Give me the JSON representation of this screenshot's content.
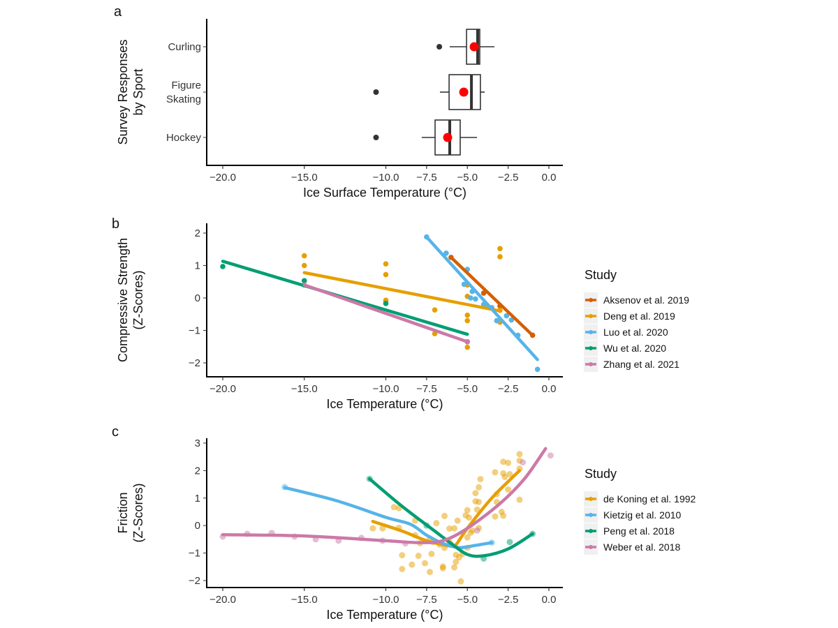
{
  "chart_data": [
    {
      "panel": "a",
      "type": "box",
      "xlabel": "Ice Surface Temperature (°C)",
      "ylabel": [
        "Survey Responses",
        "by Sport"
      ],
      "xlim": [
        -21.5,
        0.5
      ],
      "xticks": [
        "-20.0",
        "-15.0",
        "-10.0",
        "-7.5",
        "-5.0",
        "-2.5",
        "0.0"
      ],
      "xtick_values": [
        -20,
        -15,
        -10,
        -7.5,
        -5,
        -2.5,
        0
      ],
      "mean_color": "#FF0000",
      "categories": [
        {
          "label": [
            "Curling"
          ],
          "whisker_low": -6.08,
          "q1": -5.05,
          "median": -4.37,
          "q3": -4.24,
          "whisker_high": -3.34,
          "mean": -4.58,
          "outliers": [
            -6.72
          ]
        },
        {
          "label": [
            "Figure",
            "Skating"
          ],
          "whisker_low": -6.68,
          "q1": -6.12,
          "median": -4.75,
          "q3": -4.2,
          "whisker_high": -3.94,
          "mean": -5.22,
          "outliers": [
            -10.6
          ]
        },
        {
          "label": [
            "Hockey"
          ],
          "whisker_low": -7.8,
          "q1": -6.98,
          "median": -6.08,
          "q3": -5.44,
          "whisker_high": -4.41,
          "mean": -6.21,
          "outliers": [
            -10.6
          ]
        }
      ]
    },
    {
      "panel": "b",
      "type": "scatter",
      "xlabel": "Ice Temperature (°C)",
      "ylabel": [
        "Compressive Strength",
        "(Z-Scores)"
      ],
      "xlim": [
        -21.5,
        0.5
      ],
      "ylim": [
        -2.4,
        2.1
      ],
      "xticks": [
        "-20.0",
        "-15.0",
        "-10.0",
        "-7.5",
        "-5.0",
        "-2.5",
        "0.0"
      ],
      "xtick_values": [
        -20,
        -15,
        -10,
        -7.5,
        -5,
        -2.5,
        0
      ],
      "yticks": [
        "-2",
        "-1",
        "0",
        "1",
        "2"
      ],
      "ytick_values": [
        -2,
        -1,
        0,
        1,
        2
      ],
      "legend_title": "Study",
      "legend_position": "right",
      "series": [
        {
          "name": "Aksenov et al. 2019",
          "color": "#D55E00",
          "fit": [
            [
              -6,
              1.25
            ],
            [
              -1,
              -1.15
            ]
          ],
          "points": [
            [
              -6,
              1.25
            ],
            [
              -4,
              0.15
            ],
            [
              -3,
              -0.25
            ],
            [
              -1,
              -1.15
            ]
          ]
        },
        {
          "name": "Deng et al. 2019",
          "color": "#E69F00",
          "fit": [
            [
              -15,
              0.78
            ],
            [
              -3,
              -0.4
            ]
          ],
          "points": [
            [
              -15,
              1.3
            ],
            [
              -15,
              1.0
            ],
            [
              -10,
              1.05
            ],
            [
              -10,
              0.72
            ],
            [
              -10,
              -0.07
            ],
            [
              -10,
              -0.12
            ],
            [
              -7,
              -0.37
            ],
            [
              -7,
              -1.1
            ],
            [
              -5,
              0.4
            ],
            [
              -5,
              0.05
            ],
            [
              -5,
              -0.53
            ],
            [
              -5,
              -0.7
            ],
            [
              -5,
              -1.35
            ],
            [
              -5,
              -1.52
            ],
            [
              -3,
              1.52
            ],
            [
              -3,
              1.27
            ],
            [
              -3,
              -0.38
            ],
            [
              -3,
              -0.75
            ]
          ]
        },
        {
          "name": "Luo et al. 2020",
          "color": "#56B4E9",
          "fit": [
            [
              -7.5,
              1.88
            ],
            [
              -0.7,
              -1.9
            ]
          ],
          "points": [
            [
              -7.5,
              1.88
            ],
            [
              -6.3,
              1.38
            ],
            [
              -5,
              0.88
            ],
            [
              -5.2,
              0.42
            ],
            [
              -4.8,
              0.0
            ],
            [
              -4.5,
              -0.03
            ],
            [
              -4.7,
              0.2
            ],
            [
              -4,
              -0.2
            ],
            [
              -3.8,
              -0.25
            ],
            [
              -3.5,
              -0.3
            ],
            [
              -3.2,
              -0.7
            ],
            [
              -2.6,
              -0.55
            ],
            [
              -2.3,
              -0.68
            ],
            [
              -1.9,
              -1.15
            ],
            [
              -0.7,
              -2.2
            ]
          ]
        },
        {
          "name": "Wu et al. 2020",
          "color": "#009E73",
          "fit": [
            [
              -20,
              1.13
            ],
            [
              -5,
              -1.12
            ]
          ],
          "points": [
            [
              -20,
              0.97
            ],
            [
              -15,
              0.53
            ],
            [
              -10,
              -0.17
            ]
          ]
        },
        {
          "name": "Zhang et al. 2021",
          "color": "#CC79A7",
          "fit": [
            [
              -15,
              0.4
            ],
            [
              -5,
              -1.35
            ]
          ],
          "points": [
            [
              -15,
              0.4
            ],
            [
              -5,
              -1.35
            ]
          ]
        }
      ]
    },
    {
      "panel": "c",
      "type": "scatter",
      "xlabel": "Ice Temperature (°C)",
      "ylabel": [
        "Friction",
        "(Z-Scores)"
      ],
      "xlim": [
        -21.5,
        0.5
      ],
      "ylim": [
        -2.3,
        3.1
      ],
      "xticks": [
        "-20.0",
        "-15.0",
        "-10.0",
        "-7.5",
        "-5.0",
        "-2.5",
        "0.0"
      ],
      "xtick_values": [
        -20,
        -15,
        -10,
        -7.5,
        -5,
        -2.5,
        0
      ],
      "yticks": [
        "-2",
        "-1",
        "0",
        "1",
        "2",
        "3"
      ],
      "ytick_values": [
        -2,
        -1,
        0,
        1,
        2,
        3
      ],
      "legend_title": "Study",
      "legend_position": "right",
      "series": [
        {
          "name": "de Koning et al. 1992",
          "color": "#E69F00",
          "fit": [
            [
              -10.8,
              0.15
            ],
            [
              -9,
              -0.2
            ],
            [
              -7.5,
              -0.55
            ],
            [
              -6,
              -0.75
            ],
            [
              -5.7,
              -0.7
            ],
            [
              -5,
              -0.1
            ],
            [
              -3.5,
              1.0
            ],
            [
              -1.8,
              2.0
            ]
          ],
          "points": [
            [
              -9.5,
              0.67
            ],
            [
              -9.2,
              0.63
            ],
            [
              -10.8,
              -0.1
            ],
            [
              -10.2,
              -0.1
            ],
            [
              -9.2,
              -0.08
            ],
            [
              -8.2,
              0.18
            ],
            [
              -8.2,
              -0.35
            ],
            [
              -7.9,
              -0.64
            ],
            [
              -9.0,
              -1.08
            ],
            [
              -9.0,
              -1.58
            ],
            [
              -8.4,
              -1.42
            ],
            [
              -8.0,
              -1.1
            ],
            [
              -7.6,
              -1.37
            ],
            [
              -7.3,
              -1.69
            ],
            [
              -7.2,
              -1.03
            ],
            [
              -6.9,
              0.09
            ],
            [
              -6.5,
              -1.49
            ],
            [
              -6.5,
              -1.55
            ],
            [
              -6.4,
              0.35
            ],
            [
              -6.1,
              -0.11
            ],
            [
              -5.8,
              -0.1
            ],
            [
              -5.8,
              -1.52
            ],
            [
              -5.7,
              -1.32
            ],
            [
              -5.6,
              0.18
            ],
            [
              -5.7,
              -1.07
            ],
            [
              -5.5,
              -1.15
            ],
            [
              -5.4,
              -2.03
            ],
            [
              -5.1,
              0.37
            ],
            [
              -5.0,
              0.56
            ],
            [
              -4.9,
              0.29
            ],
            [
              -5.0,
              -0.43
            ],
            [
              -4.7,
              -0.18
            ],
            [
              -4.5,
              0.88
            ],
            [
              -4.5,
              1.18
            ],
            [
              -4.3,
              1.39
            ],
            [
              -4.3,
              0.86
            ],
            [
              -4.2,
              1.69
            ],
            [
              -4.4,
              0.58
            ],
            [
              -4.3,
              -0.09
            ],
            [
              -3.3,
              1.94
            ],
            [
              -3.2,
              1.14
            ],
            [
              -3.3,
              0.33
            ],
            [
              -3.2,
              0.86
            ],
            [
              -2.8,
              2.32
            ],
            [
              -2.5,
              2.28
            ],
            [
              -2.8,
              1.9
            ],
            [
              -2.7,
              1.77
            ],
            [
              -2.4,
              1.87
            ],
            [
              -2.5,
              1.31
            ],
            [
              -2.9,
              0.5
            ],
            [
              -2.8,
              0.36
            ],
            [
              -1.8,
              2.6
            ],
            [
              -1.8,
              2.36
            ],
            [
              -1.8,
              2.07
            ],
            [
              -1.8,
              0.94
            ],
            [
              -7.3,
              -0.47
            ],
            [
              -7.1,
              -0.6
            ],
            [
              -6.7,
              -0.69
            ],
            [
              -6.4,
              -0.81
            ],
            [
              -6.1,
              -0.6
            ],
            [
              -6.0,
              -0.69
            ],
            [
              -5.3,
              -1.03
            ],
            [
              -5.0,
              -0.81
            ],
            [
              -4.8,
              -0.26
            ]
          ]
        },
        {
          "name": "Kietzig et al. 2010",
          "color": "#56B4E9",
          "fit": [
            [
              -16.2,
              1.38
            ],
            [
              -13,
              0.9
            ],
            [
              -10,
              0.3
            ],
            [
              -8.5,
              0.05
            ],
            [
              -7.5,
              -0.35
            ],
            [
              -6.5,
              -0.65
            ],
            [
              -5.5,
              -0.8
            ],
            [
              -4.5,
              -0.72
            ],
            [
              -3.5,
              -0.62
            ]
          ],
          "points": [
            [
              -16.2,
              1.4
            ],
            [
              -3.5,
              -0.62
            ]
          ]
        },
        {
          "name": "Peng et al. 2018",
          "color": "#009E73",
          "fit": [
            [
              -11,
              1.7
            ],
            [
              -9,
              0.7
            ],
            [
              -7,
              -0.2
            ],
            [
              -6,
              -0.65
            ],
            [
              -5,
              -1.05
            ],
            [
              -4,
              -1.1
            ],
            [
              -2.5,
              -0.85
            ],
            [
              -1,
              -0.3
            ]
          ],
          "points": [
            [
              -11,
              1.7
            ],
            [
              -7.5,
              0.0
            ],
            [
              -4,
              -1.2
            ],
            [
              -2.4,
              -0.6
            ],
            [
              -1,
              -0.3
            ]
          ]
        },
        {
          "name": "Weber et al. 2018",
          "color": "#CC79A7",
          "fit": [
            [
              -20,
              -0.33
            ],
            [
              -15,
              -0.38
            ],
            [
              -10,
              -0.55
            ],
            [
              -8,
              -0.62
            ],
            [
              -6.5,
              -0.55
            ],
            [
              -5,
              -0.1
            ],
            [
              -3,
              0.8
            ],
            [
              -1.5,
              1.7
            ],
            [
              -0.2,
              2.8
            ]
          ],
          "points": [
            [
              -20,
              -0.4
            ],
            [
              -18.5,
              -0.3
            ],
            [
              -17,
              -0.27
            ],
            [
              -15.6,
              -0.4
            ],
            [
              -14.3,
              -0.5
            ],
            [
              -12.9,
              -0.55
            ],
            [
              -11.5,
              -0.45
            ],
            [
              -10.2,
              -0.55
            ],
            [
              -8.8,
              -0.65
            ],
            [
              -4.4,
              -0.18
            ],
            [
              -1.6,
              2.3
            ],
            [
              0.1,
              2.55
            ]
          ]
        }
      ]
    }
  ],
  "panel_labels": [
    "a",
    "b",
    "c"
  ]
}
